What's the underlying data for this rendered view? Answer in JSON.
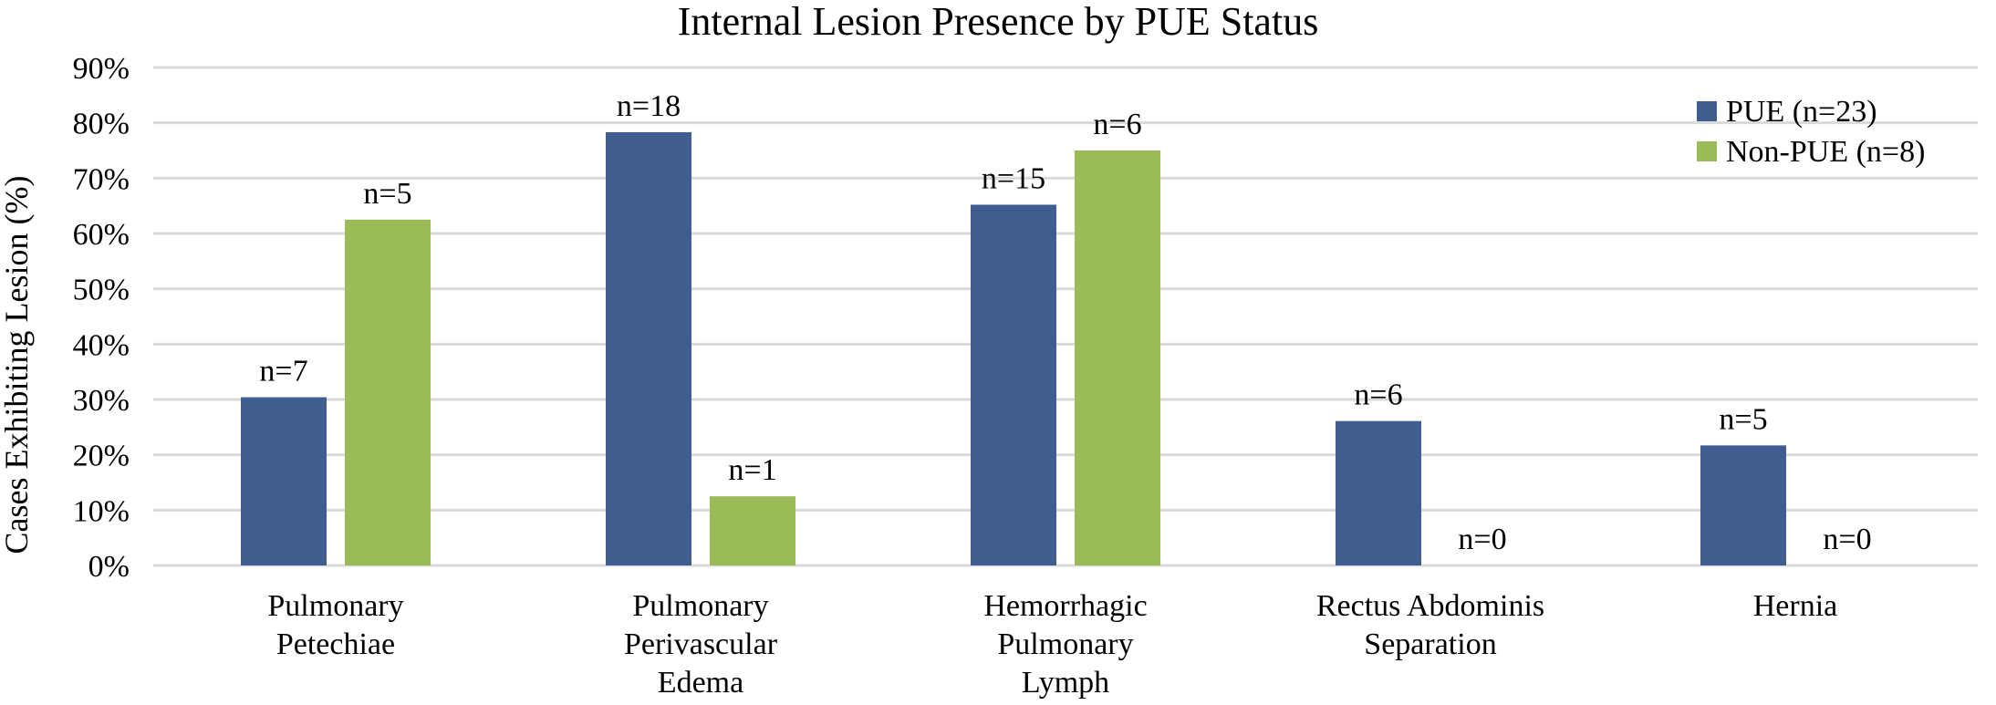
{
  "chart_data": {
    "type": "bar",
    "title": "Internal Lesion Presence by PUE Status",
    "xlabel": "",
    "ylabel": "Cases Exhibiting Lesion (%)",
    "ylim": [
      0,
      90
    ],
    "yticks": [
      "0%",
      "10%",
      "20%",
      "30%",
      "40%",
      "50%",
      "60%",
      "70%",
      "80%",
      "90%"
    ],
    "grid": true,
    "legend_position": "top-right",
    "categories": [
      [
        "Pulmonary",
        "Petechiae"
      ],
      [
        "Pulmonary",
        "Perivascular",
        "Edema"
      ],
      [
        "Hemorrhagic",
        "Pulmonary",
        "Lymph"
      ],
      [
        "Rectus Abdominis",
        "Separation"
      ],
      [
        "Hernia"
      ]
    ],
    "series": [
      {
        "name": "PUE (n=23)",
        "color": "#3f5d8f",
        "values": [
          30.4,
          78.3,
          65.2,
          26.1,
          21.7
        ],
        "labels": [
          "n=7",
          "n=18",
          "n=15",
          "n=6",
          "n=5"
        ]
      },
      {
        "name": "Non-PUE (n=8)",
        "color": "#9bbb59",
        "values": [
          62.5,
          12.5,
          75.0,
          0,
          0
        ],
        "labels": [
          "n=5",
          "n=1",
          "n=6",
          "n=0",
          "n=0"
        ]
      }
    ]
  }
}
